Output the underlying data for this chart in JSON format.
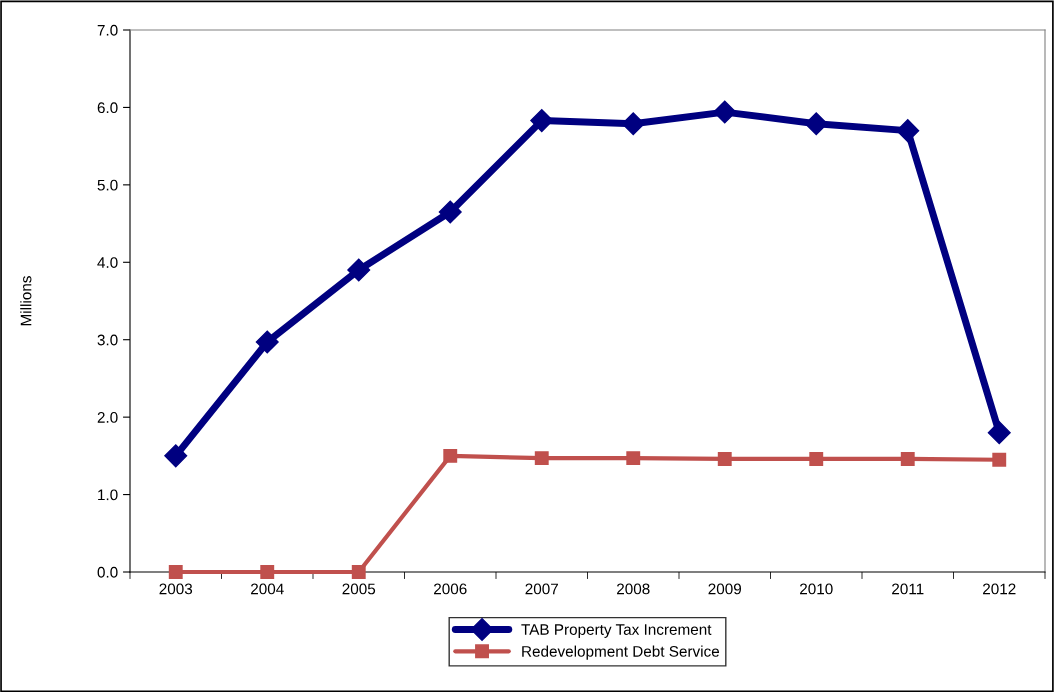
{
  "chart_data": {
    "type": "line",
    "ylabel": "Millions",
    "categories": [
      "2003",
      "2004",
      "2005",
      "2006",
      "2007",
      "2008",
      "2009",
      "2010",
      "2011",
      "2012"
    ],
    "series": [
      {
        "name": "TAB Property Tax Increment",
        "color": "#000080",
        "marker": "diamond",
        "values": [
          1.5,
          2.97,
          3.9,
          4.65,
          5.83,
          5.79,
          5.94,
          5.79,
          5.7,
          1.8
        ]
      },
      {
        "name": "Redevelopment Debt Service",
        "color": "#c0504d",
        "marker": "square",
        "values": [
          0,
          0,
          0,
          1.5,
          1.47,
          1.47,
          1.46,
          1.46,
          1.46,
          1.45
        ]
      }
    ],
    "ylim": [
      0,
      7
    ],
    "yticks": [
      {
        "value": 0,
        "label": "0.0"
      },
      {
        "value": 1,
        "label": "1.0"
      },
      {
        "value": 2,
        "label": "2.0"
      },
      {
        "value": 3,
        "label": "3.0"
      },
      {
        "value": 4,
        "label": "4.0"
      },
      {
        "value": 5,
        "label": "5.0"
      },
      {
        "value": 6,
        "label": "6.0"
      },
      {
        "value": 7,
        "label": "7.0"
      }
    ],
    "grid": false,
    "legend": "bottom",
    "line_style": "solid"
  }
}
